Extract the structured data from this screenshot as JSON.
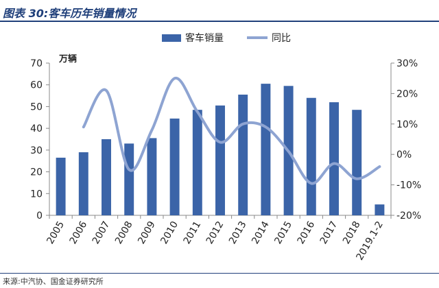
{
  "figure": {
    "title": "图表 30:客车历年销量情况",
    "source": "来源:中汽协、国金证券研究所"
  },
  "colors": {
    "bar": "#3b64a8",
    "line": "#8ea4d2",
    "accent": "#1f3f7a"
  },
  "chart_data": {
    "type": "bar",
    "categories": [
      "2005",
      "2006",
      "2007",
      "2008",
      "2009",
      "2010",
      "2011",
      "2012",
      "2013",
      "2014",
      "2015",
      "2016",
      "2017",
      "2018",
      "2019.1-2"
    ],
    "series": [
      {
        "name": "客车销量",
        "type": "bar",
        "axis": "left",
        "values": [
          26.5,
          29,
          35,
          33,
          35.5,
          44.5,
          48.5,
          50.5,
          55.5,
          60.5,
          59.5,
          54,
          52,
          48.5,
          5
        ]
      },
      {
        "name": "同比",
        "type": "line",
        "axis": "right",
        "values": [
          null,
          9,
          21,
          -5,
          8,
          25,
          14,
          4,
          10,
          9,
          1,
          -9.5,
          -3,
          -8,
          -4
        ]
      }
    ],
    "ylabel": "万辆",
    "ylim": [
      0,
      70
    ],
    "yticks": [
      0,
      10,
      20,
      30,
      40,
      50,
      60,
      70
    ],
    "y2lim": [
      -20,
      30
    ],
    "y2ticks": [
      "-20%",
      "-10%",
      "0%",
      "10%",
      "20%",
      "30%"
    ],
    "legend": "top-center",
    "grid": false
  }
}
